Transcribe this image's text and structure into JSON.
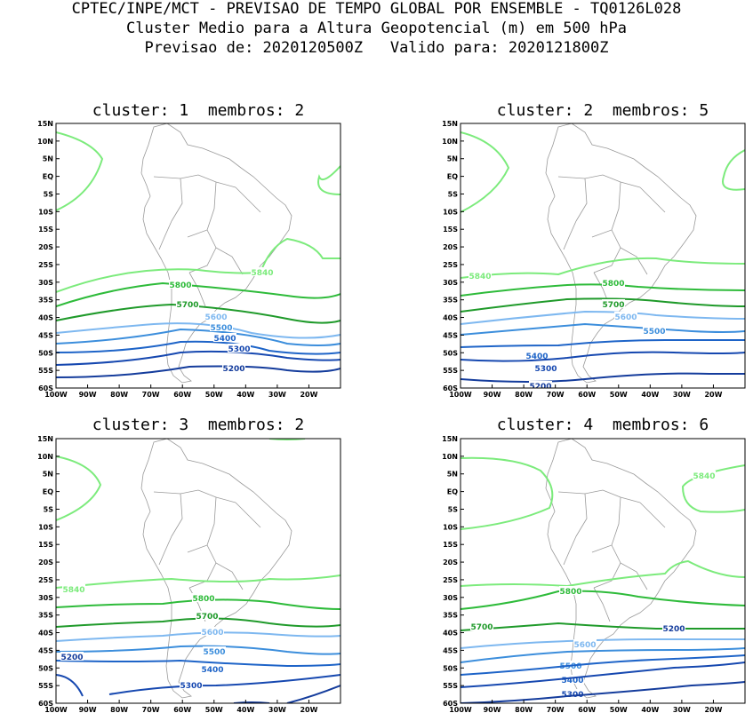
{
  "header": {
    "line1": "CPTEC/INPE/MCT - PREVISAO DE TEMPO GLOBAL POR ENSEMBLE - TQ0126L028",
    "line2": "Cluster Medio para a Altura Geopotencial (m) em 500 hPa",
    "line3": "Previsao de: 2020120500Z   Valido para: 2020121800Z"
  },
  "axes": {
    "lat_labels": [
      "15N",
      "10N",
      "5N",
      "EQ",
      "5S",
      "10S",
      "15S",
      "20S",
      "25S",
      "30S",
      "35S",
      "40S",
      "45S",
      "50S",
      "55S",
      "60S"
    ],
    "lon_labels": [
      "100W",
      "90W",
      "80W",
      "70W",
      "60W",
      "50W",
      "40W",
      "30W",
      "20W"
    ]
  },
  "colors": {
    "c5840": "#7CEB7C",
    "c5800": "#2EBB3A",
    "c5700": "#1F9A2A",
    "c5600": "#7EB8F0",
    "c5500": "#3C8EDC",
    "c5400": "#1E64C8",
    "c5300": "#1648B0",
    "c5200": "#143C9C",
    "c5100": "#5A38B4"
  },
  "panels": [
    {
      "title": "cluster: 1  membros: 2",
      "contours": [
        {
          "level": "5840",
          "color": "c5840",
          "label": "5840"
        },
        {
          "level": "5800",
          "color": "c5800",
          "label": "5800"
        },
        {
          "level": "5700",
          "color": "c5700",
          "label": "5700"
        },
        {
          "level": "5600",
          "color": "c5600",
          "label": "5600"
        },
        {
          "level": "5500",
          "color": "c5500",
          "label": "5500"
        },
        {
          "level": "5400",
          "color": "c5400",
          "label": "5400"
        },
        {
          "level": "5300",
          "color": "c5300",
          "label": "5300"
        },
        {
          "level": "5200",
          "color": "c5200",
          "label": "5200"
        }
      ]
    },
    {
      "title": "cluster: 2  membros: 5",
      "contours": [
        {
          "level": "5840",
          "color": "c5840",
          "label": "5840"
        },
        {
          "level": "5800",
          "color": "c5800",
          "label": "5800"
        },
        {
          "level": "5700",
          "color": "c5700",
          "label": "5700"
        },
        {
          "level": "5600",
          "color": "c5600",
          "label": "5600"
        },
        {
          "level": "5500",
          "color": "c5500",
          "label": "5500"
        },
        {
          "level": "5400",
          "color": "c5400",
          "label": "5400"
        },
        {
          "level": "5300",
          "color": "c5300",
          "label": "5300"
        },
        {
          "level": "5200",
          "color": "c5200",
          "label": "5200"
        }
      ]
    },
    {
      "title": "cluster: 3  membros: 2",
      "contours": [
        {
          "level": "5840",
          "color": "c5840",
          "label": "5840"
        },
        {
          "level": "5800",
          "color": "c5800",
          "label": "5800"
        },
        {
          "level": "5700",
          "color": "c5700",
          "label": "5700"
        },
        {
          "level": "5600",
          "color": "c5600",
          "label": "5600"
        },
        {
          "level": "5500",
          "color": "c5500",
          "label": "5500"
        },
        {
          "level": "5400",
          "color": "c5400",
          "label": "5400"
        },
        {
          "level": "5300",
          "color": "c5300",
          "label": "5300"
        },
        {
          "level": "5200",
          "color": "c5200",
          "label": "5200"
        }
      ]
    },
    {
      "title": "cluster: 4  membros: 6",
      "contours": [
        {
          "level": "5840",
          "color": "c5840",
          "label": "5840"
        },
        {
          "level": "5800",
          "color": "c5800",
          "label": "5800"
        },
        {
          "level": "5700",
          "color": "c5700",
          "label": "5700"
        },
        {
          "level": "5600",
          "color": "c5600",
          "label": "5600"
        },
        {
          "level": "5500",
          "color": "c5500",
          "label": "5500"
        },
        {
          "level": "5400",
          "color": "c5400",
          "label": "5400"
        },
        {
          "level": "5300",
          "color": "c5300",
          "label": "5300"
        },
        {
          "level": "5200",
          "color": "c5200",
          "label": "5200"
        }
      ]
    }
  ]
}
